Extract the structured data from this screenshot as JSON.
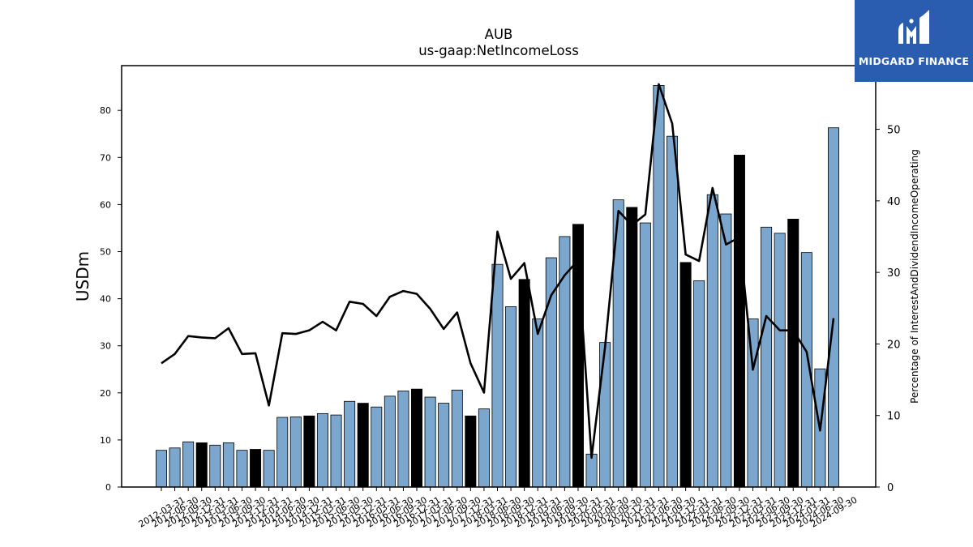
{
  "chart_data": {
    "type": "bar",
    "title": "AUB",
    "subtitle": "us-gaap:NetIncomeLoss",
    "ylabel": "USDm",
    "y2label": "Percentage of InterestAndDividendIncomeOperating",
    "ylim": [
      0,
      89.5
    ],
    "y2lim": [
      0,
      58.9
    ],
    "yticks": [
      0,
      10,
      20,
      30,
      40,
      50,
      60,
      70,
      80
    ],
    "y2ticks": [
      0,
      10,
      20,
      30,
      40,
      50
    ],
    "categories": [
      "2012-03-31",
      "2012-06-30",
      "2012-09-30",
      "2012-12-31",
      "2013-03-31",
      "2013-06-30",
      "2013-09-30",
      "2013-12-31",
      "2014-03-31",
      "2014-06-30",
      "2014-09-30",
      "2014-12-31",
      "2015-03-31",
      "2015-06-30",
      "2015-09-30",
      "2015-12-31",
      "2016-03-31",
      "2016-06-30",
      "2016-09-30",
      "2016-12-31",
      "2017-03-31",
      "2017-06-30",
      "2017-09-30",
      "2017-12-31",
      "2018-03-31",
      "2018-06-30",
      "2018-09-30",
      "2018-12-31",
      "2019-03-31",
      "2019-06-30",
      "2019-09-30",
      "2019-12-31",
      "2020-03-31",
      "2020-06-30",
      "2020-09-30",
      "2020-12-31",
      "2021-03-31",
      "2021-06-30",
      "2021-09-30",
      "2021-12-31",
      "2022-03-31",
      "2022-06-30",
      "2022-09-30",
      "2022-12-31",
      "2023-03-31",
      "2023-06-30",
      "2023-09-30",
      "2023-12-31",
      "2024-03-31",
      "2024-06-30",
      "2024-09-30"
    ],
    "series": [
      {
        "type": "bar",
        "values": [
          7.8,
          8.3,
          9.6,
          9.4,
          8.9,
          9.4,
          7.8,
          8.0,
          7.8,
          14.8,
          14.9,
          15.1,
          15.6,
          15.3,
          18.2,
          17.8,
          17.0,
          19.3,
          20.4,
          20.8,
          19.1,
          17.8,
          20.6,
          15.1,
          16.6,
          47.3,
          38.3,
          44.1,
          35.7,
          48.7,
          53.2,
          55.8,
          7.0,
          30.7,
          61.0,
          59.4,
          56.1,
          85.3,
          74.5,
          47.7,
          43.8,
          62.1,
          58.0,
          70.5,
          35.7,
          55.2,
          53.9,
          56.9,
          49.8,
          25.1,
          76.3
        ],
        "highlight": [
          false,
          false,
          false,
          true,
          false,
          false,
          false,
          true,
          false,
          false,
          false,
          true,
          false,
          false,
          false,
          true,
          false,
          false,
          false,
          true,
          false,
          false,
          false,
          true,
          false,
          false,
          false,
          true,
          false,
          false,
          false,
          true,
          false,
          false,
          false,
          true,
          false,
          false,
          false,
          true,
          false,
          false,
          false,
          true,
          false,
          false,
          false,
          true,
          false,
          false,
          false
        ],
        "color": "#7ba7cf",
        "highlight_color": "#000000"
      },
      {
        "type": "line",
        "axis": "right",
        "values": [
          17.3,
          18.6,
          21.1,
          20.9,
          20.8,
          22.2,
          18.6,
          18.7,
          11.4,
          21.5,
          21.4,
          21.9,
          23.1,
          21.9,
          25.9,
          25.6,
          23.9,
          26.6,
          27.4,
          27.0,
          24.9,
          22.1,
          24.4,
          17.3,
          13.2,
          35.7,
          29.1,
          31.3,
          21.4,
          26.8,
          29.6,
          31.7,
          4.1,
          19.5,
          38.6,
          36.6,
          38.1,
          56.3,
          50.8,
          32.5,
          31.6,
          41.8,
          33.9,
          34.9,
          16.4,
          23.9,
          21.9,
          21.9,
          18.9,
          7.9,
          23.6
        ],
        "color": "#000000"
      }
    ],
    "grid": false,
    "legend": "none"
  },
  "logo": {
    "text": "MIDGARD FINANCE",
    "color": "#2a5db0"
  }
}
